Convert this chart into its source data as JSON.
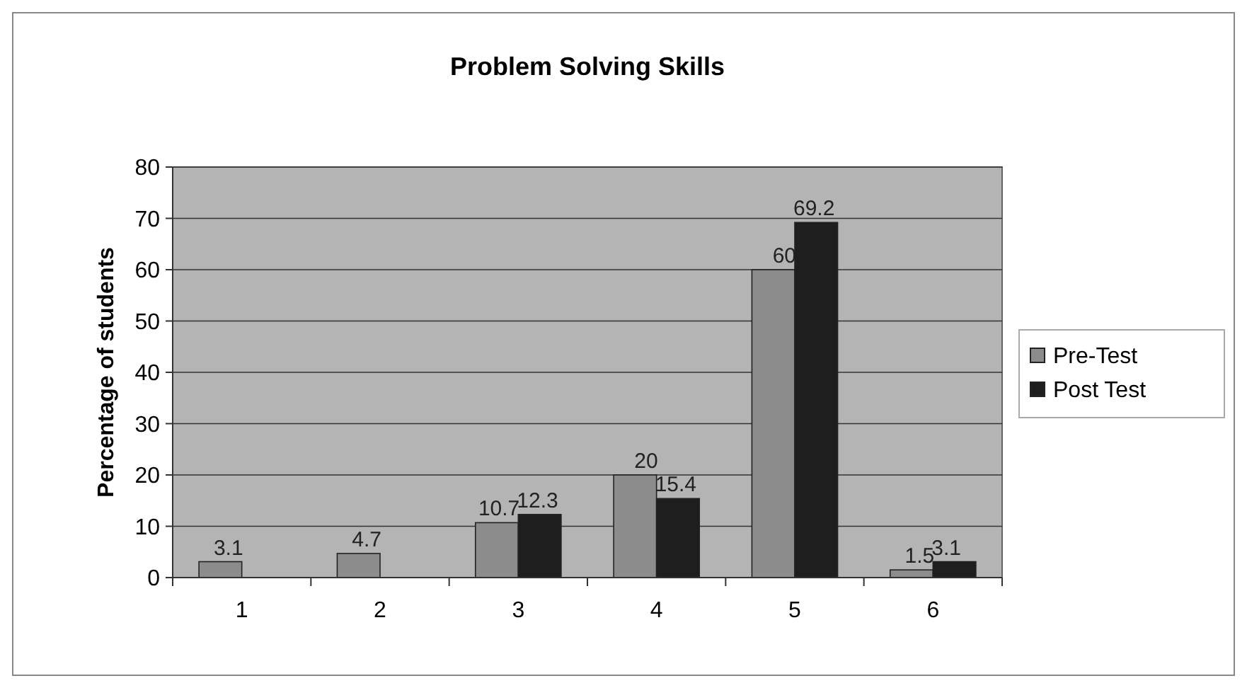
{
  "chart_data": {
    "type": "bar",
    "title": "Problem Solving Skills",
    "ylabel": "Percentage of students",
    "categories": [
      "1",
      "2",
      "3",
      "4",
      "5",
      "6"
    ],
    "series": [
      {
        "name": "Pre-Test",
        "color": "#8c8c8c",
        "values": [
          3.1,
          4.7,
          10.7,
          20,
          60,
          1.5
        ]
      },
      {
        "name": "Post Test",
        "color": "#1e1e1e",
        "values": [
          null,
          null,
          12.3,
          15.4,
          69.2,
          3.1
        ]
      }
    ],
    "ylim": [
      0,
      80
    ],
    "yticks": [
      0,
      10,
      20,
      30,
      40,
      50,
      60,
      70,
      80
    ],
    "grid": "y",
    "legend": "right",
    "data_labels": true
  }
}
